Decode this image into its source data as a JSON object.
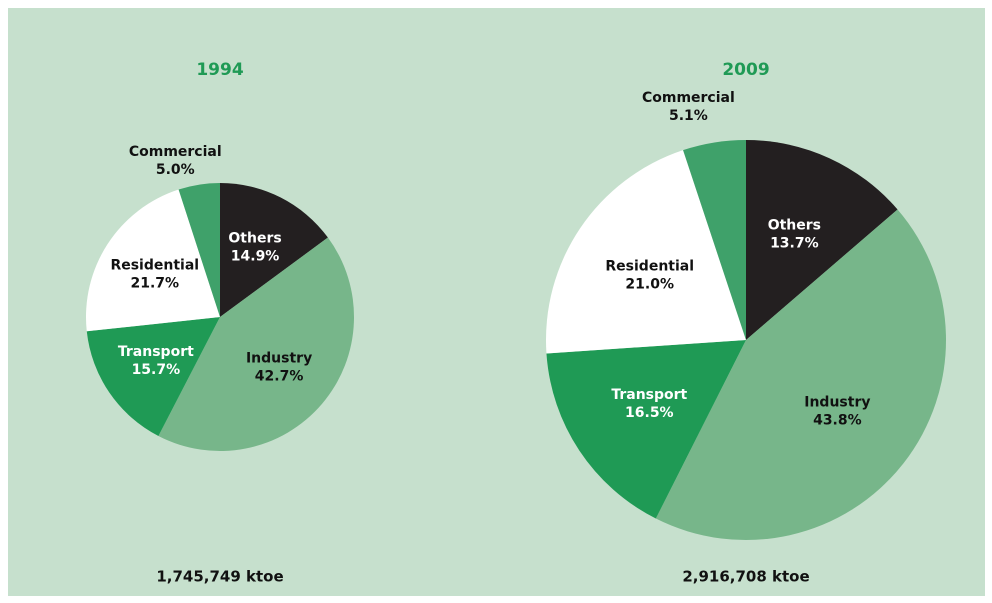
{
  "chart_data": [
    {
      "type": "pie",
      "title": "1994",
      "total": "1,745,749 ktoe",
      "categories": [
        "Others",
        "Industry",
        "Transport",
        "Residential",
        "Commercial"
      ],
      "values": [
        14.9,
        42.7,
        15.7,
        21.7,
        5.0
      ],
      "value_labels": [
        "14.9%",
        "42.7%",
        "15.7%",
        "21.7%",
        "5.0%"
      ],
      "colors": [
        "#231f20",
        "#77b68a",
        "#1f9a55",
        "#ffffff",
        "#3fa16a"
      ]
    },
    {
      "type": "pie",
      "title": "2009",
      "total": "2,916,708 ktoe",
      "categories": [
        "Others",
        "Industry",
        "Transport",
        "Residential",
        "Commercial"
      ],
      "values": [
        13.7,
        43.8,
        16.5,
        21.0,
        5.1
      ],
      "value_labels": [
        "13.7%",
        "43.8%",
        "16.5%",
        "21.0%",
        "5.1%"
      ],
      "colors": [
        "#231f20",
        "#77b68a",
        "#1f9a55",
        "#ffffff",
        "#3fa16a"
      ]
    }
  ]
}
